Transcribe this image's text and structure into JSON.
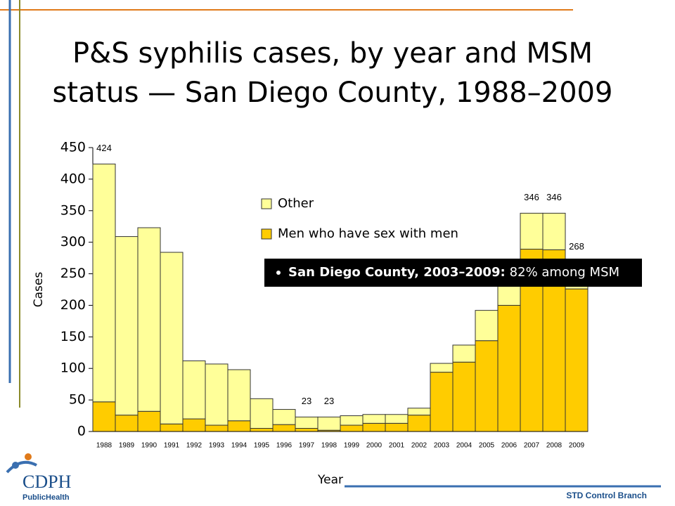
{
  "chart_data": {
    "type": "stacked_bar",
    "title": [
      "P&S syphilis cases, by year and MSM",
      "status — San Diego County, 1988–2009"
    ],
    "xlabel": "Year",
    "ylabel": "Cases",
    "categories": [
      "1988",
      "1989",
      "1990",
      "1991",
      "1992",
      "1993",
      "1994",
      "1995",
      "1996",
      "1997",
      "1998",
      "1999",
      "2000",
      "2001",
      "2002",
      "2003",
      "2004",
      "2005",
      "2006",
      "2007",
      "2008",
      "2009"
    ],
    "series": [
      {
        "name": "Men who have sex with men",
        "color": "#ffcc00",
        "values": [
          47,
          26,
          32,
          12,
          20,
          10,
          17,
          5,
          11,
          5,
          2,
          10,
          13,
          13,
          26,
          94,
          110,
          144,
          200,
          289,
          288,
          226
        ]
      },
      {
        "name": "Other",
        "color": "#ffff99",
        "values": [
          377,
          283,
          291,
          272,
          92,
          97,
          81,
          47,
          24,
          18,
          21,
          15,
          14,
          14,
          11,
          14,
          27,
          48,
          54,
          57,
          58,
          42
        ]
      }
    ],
    "total_labels": [
      {
        "category": "1988",
        "value": 424
      },
      {
        "category": "1997",
        "value": 23
      },
      {
        "category": "1998",
        "value": 23
      },
      {
        "category": "2007",
        "value": 346
      },
      {
        "category": "2008",
        "value": 346
      },
      {
        "category": "2009",
        "value": 268
      }
    ],
    "ylim": [
      0,
      450
    ],
    "yticks": [
      0,
      50,
      100,
      150,
      200,
      250,
      300,
      350,
      400,
      450
    ],
    "annotation": {
      "bold": "San Diego County, 2003–2009:",
      "text": "82% among MSM"
    },
    "footer": "STD Control Branch",
    "logo": {
      "name": "CDPH",
      "subtitle": "PublicHealth"
    }
  }
}
